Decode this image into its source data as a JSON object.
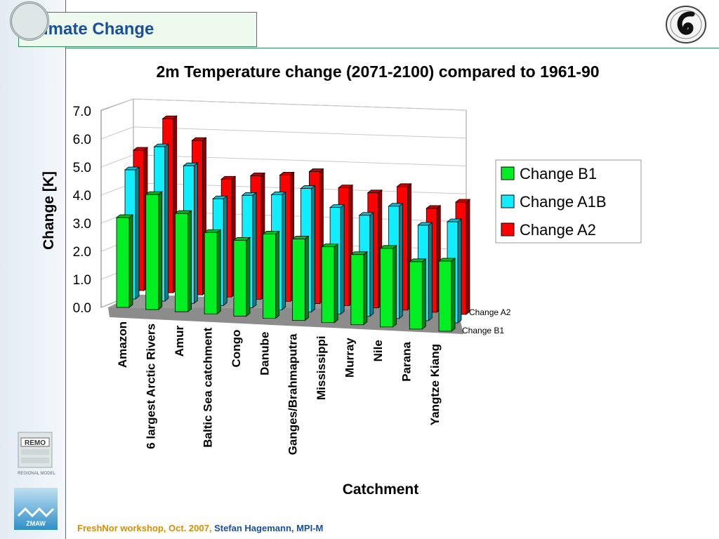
{
  "slide": {
    "title": "Climate Change",
    "footer_event": "FreshNor workshop, Oct. 2007,",
    "footer_author": "Stefan Hagemann, MPI-M"
  },
  "logos": {
    "remo_text": "REMO",
    "remo_ring": "REGIONAL MODEL",
    "zmaw_text": "ZMAW"
  },
  "colors": {
    "b1": "#00ee22",
    "a1b": "#11eeff",
    "a2": "#ff0000",
    "title_blue": "#1a4fa0",
    "footer_orange": "#d98c00",
    "rule_green": "#2e8b57"
  },
  "chart_data": {
    "type": "bar",
    "title": "2m Temperature change (2071-2100) compared to 1961-90",
    "xlabel": "Catchment",
    "ylabel": "Change [K]",
    "ylim": [
      0,
      7
    ],
    "y_ticks": [
      "0.0",
      "1.0",
      "2.0",
      "3.0",
      "4.0",
      "5.0",
      "6.0",
      "7.0"
    ],
    "categories": [
      "Amazon",
      "6 largest Arctic Rivers",
      "Amur",
      "Baltic Sea catchment",
      "Congo",
      "Danube",
      "Ganges/Brahmaputra",
      "Mississippi",
      "Murray",
      "Nile",
      "Parana",
      "Yangtze Kiang"
    ],
    "series": [
      {
        "name": "Change B1",
        "values": [
          3.2,
          4.1,
          3.5,
          2.9,
          2.7,
          3.0,
          2.9,
          2.7,
          2.5,
          2.8,
          2.4,
          2.5
        ]
      },
      {
        "name": "Change A1B",
        "values": [
          4.6,
          5.5,
          4.9,
          3.8,
          4.0,
          4.1,
          4.4,
          3.8,
          3.6,
          4.0,
          3.4,
          3.6
        ]
      },
      {
        "name": "Change A2",
        "values": [
          5.0,
          6.2,
          5.5,
          4.2,
          4.4,
          4.5,
          4.7,
          4.2,
          4.1,
          4.4,
          3.7,
          4.0
        ]
      }
    ],
    "legend_position": "right",
    "depth_axis_labels": [
      "Change A2",
      "Change B1"
    ]
  }
}
